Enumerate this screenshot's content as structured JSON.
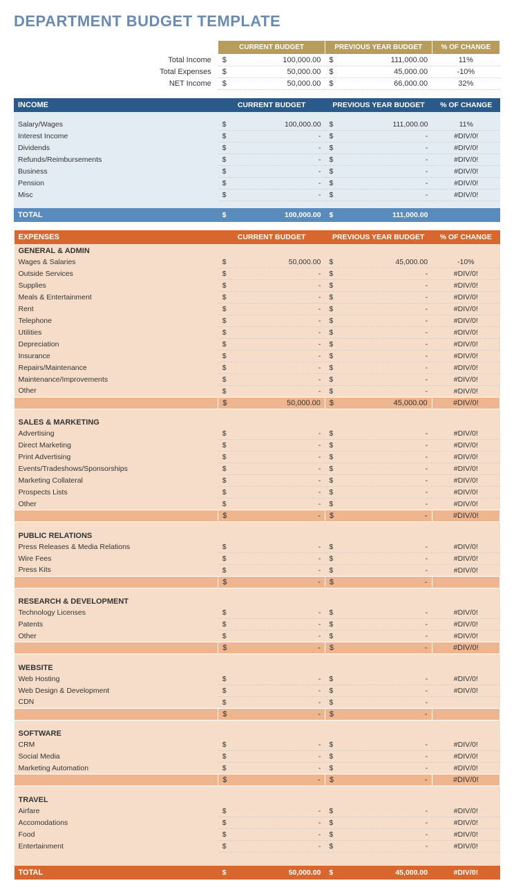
{
  "title": "DEPARTMENT BUDGET TEMPLATE",
  "colors": {
    "title": "#6a8ab0",
    "gold_header": "#b79c5b",
    "income_header": "#2b5a8a",
    "income_total": "#5a8bbf",
    "income_bg": "#e3ebf3",
    "expense_header": "#d8672f",
    "expense_bg": "#f5ddc9",
    "expense_subtotal": "#efb58f"
  },
  "headers": {
    "current": "CURRENT BUDGET",
    "previous": "PREVIOUS YEAR BUDGET",
    "change": "% OF CHANGE"
  },
  "summary": [
    {
      "label": "Total Income",
      "current": "100,000.00",
      "previous": "111,000.00",
      "change": "11%"
    },
    {
      "label": "Total Expenses",
      "current": "50,000.00",
      "previous": "45,000.00",
      "change": "-10%"
    },
    {
      "label": "NET Income",
      "current": "50,000.00",
      "previous": "66,000.00",
      "change": "32%"
    }
  ],
  "income": {
    "title": "INCOME",
    "rows": [
      {
        "label": "Salary/Wages",
        "current": "100,000.00",
        "previous": "111,000.00",
        "change": "11%"
      },
      {
        "label": "Interest Income",
        "current": "-",
        "previous": "-",
        "change": "#DIV/0!"
      },
      {
        "label": "Dividends",
        "current": "-",
        "previous": "-",
        "change": "#DIV/0!"
      },
      {
        "label": "Refunds/Reimbursements",
        "current": "-",
        "previous": "-",
        "change": "#DIV/0!"
      },
      {
        "label": "Business",
        "current": "-",
        "previous": "-",
        "change": "#DIV/0!"
      },
      {
        "label": "Pension",
        "current": "-",
        "previous": "-",
        "change": "#DIV/0!"
      },
      {
        "label": "Misc",
        "current": "-",
        "previous": "-",
        "change": "#DIV/0!"
      }
    ],
    "total": {
      "label": "TOTAL",
      "current": "100,000.00",
      "previous": "111,000.00",
      "change": ""
    }
  },
  "expenses": {
    "title": "EXPENSES",
    "categories": [
      {
        "name": "GENERAL & ADMIN",
        "rows": [
          {
            "label": "Wages & Salaries",
            "current": "50,000.00",
            "previous": "45,000.00",
            "change": "-10%"
          },
          {
            "label": "Outside Services",
            "current": "-",
            "previous": "-",
            "change": "#DIV/0!"
          },
          {
            "label": "Supplies",
            "current": "-",
            "previous": "-",
            "change": "#DIV/0!"
          },
          {
            "label": "Meals & Entertainment",
            "current": "-",
            "previous": "-",
            "change": "#DIV/0!"
          },
          {
            "label": "Rent",
            "current": "-",
            "previous": "-",
            "change": "#DIV/0!"
          },
          {
            "label": "Telephone",
            "current": "-",
            "previous": "-",
            "change": "#DIV/0!"
          },
          {
            "label": "Utilities",
            "current": "-",
            "previous": "-",
            "change": "#DIV/0!"
          },
          {
            "label": "Depreciation",
            "current": "-",
            "previous": "-",
            "change": "#DIV/0!"
          },
          {
            "label": "Insurance",
            "current": "-",
            "previous": "-",
            "change": "#DIV/0!"
          },
          {
            "label": "Repairs/Maintenance",
            "current": "-",
            "previous": "-",
            "change": "#DIV/0!"
          },
          {
            "label": "Maintenance/Improvements",
            "current": "-",
            "previous": "-",
            "change": "#DIV/0!"
          },
          {
            "label": "Other",
            "current": "-",
            "previous": "-",
            "change": "#DIV/0!"
          }
        ],
        "subtotal": {
          "current": "50,000.00",
          "previous": "45,000.00",
          "change": "#DIV/0!"
        }
      },
      {
        "name": "SALES & MARKETING",
        "rows": [
          {
            "label": "Advertising",
            "current": "-",
            "previous": "-",
            "change": "#DIV/0!"
          },
          {
            "label": "Direct Marketing",
            "current": "-",
            "previous": "-",
            "change": "#DIV/0!"
          },
          {
            "label": "Print Advertising",
            "current": "-",
            "previous": "-",
            "change": "#DIV/0!"
          },
          {
            "label": "Events/Tradeshows/Sponsorships",
            "current": "-",
            "previous": "-",
            "change": "#DIV/0!"
          },
          {
            "label": "Marketing Collateral",
            "current": "-",
            "previous": "-",
            "change": "#DIV/0!"
          },
          {
            "label": "Prospects Lists",
            "current": "-",
            "previous": "-",
            "change": "#DIV/0!"
          },
          {
            "label": "Other",
            "current": "-",
            "previous": "-",
            "change": "#DIV/0!"
          }
        ],
        "subtotal": {
          "current": "-",
          "previous": "-",
          "change": "#DIV/0!"
        }
      },
      {
        "name": "PUBLIC RELATIONS",
        "rows": [
          {
            "label": "Press Releases & Media Relations",
            "current": "-",
            "previous": "-",
            "change": "#DIV/0!"
          },
          {
            "label": "Wire Fees",
            "current": "-",
            "previous": "-",
            "change": "#DIV/0!"
          },
          {
            "label": "Press Kits",
            "current": "-",
            "previous": "-",
            "change": "#DIV/0!"
          }
        ],
        "subtotal": {
          "current": "-",
          "previous": "-",
          "change": ""
        }
      },
      {
        "name": "RESEARCH & DEVELOPMENT",
        "rows": [
          {
            "label": "Technology Licenses",
            "current": "-",
            "previous": "-",
            "change": "#DIV/0!"
          },
          {
            "label": "Patents",
            "current": "-",
            "previous": "-",
            "change": "#DIV/0!"
          },
          {
            "label": "Other",
            "current": "-",
            "previous": "-",
            "change": "#DIV/0!"
          }
        ],
        "subtotal": {
          "current": "-",
          "previous": "-",
          "change": "#DIV/0!"
        }
      },
      {
        "name": "WEBSITE",
        "rows": [
          {
            "label": "Web Hosting",
            "current": "-",
            "previous": "-",
            "change": "#DIV/0!"
          },
          {
            "label": "Web Design & Development",
            "current": "-",
            "previous": "-",
            "change": "#DIV/0!"
          },
          {
            "label": "CDN",
            "current": "-",
            "previous": "-",
            "change": ""
          }
        ],
        "subtotal": {
          "current": "-",
          "previous": "-",
          "change": ""
        }
      },
      {
        "name": "SOFTWARE",
        "rows": [
          {
            "label": "CRM",
            "current": "-",
            "previous": "-",
            "change": "#DIV/0!"
          },
          {
            "label": "Social Media",
            "current": "-",
            "previous": "-",
            "change": "#DIV/0!"
          },
          {
            "label": "Marketing Automation",
            "current": "-",
            "previous": "-",
            "change": "#DIV/0!"
          }
        ],
        "subtotal": {
          "current": "-",
          "previous": "-",
          "change": "#DIV/0!"
        }
      },
      {
        "name": "TRAVEL",
        "rows": [
          {
            "label": "Airfare",
            "current": "-",
            "previous": "-",
            "change": "#DIV/0!"
          },
          {
            "label": "Accomodations",
            "current": "-",
            "previous": "-",
            "change": "#DIV/0!"
          },
          {
            "label": "Food",
            "current": "-",
            "previous": "-",
            "change": "#DIV/0!"
          },
          {
            "label": "Entertainment",
            "current": "-",
            "previous": "-",
            "change": "#DIV/0!"
          }
        ],
        "subtotal": null
      }
    ],
    "total": {
      "label": "TOTAL",
      "current": "50,000.00",
      "previous": "45,000.00",
      "change": "#DIV/0!"
    }
  }
}
